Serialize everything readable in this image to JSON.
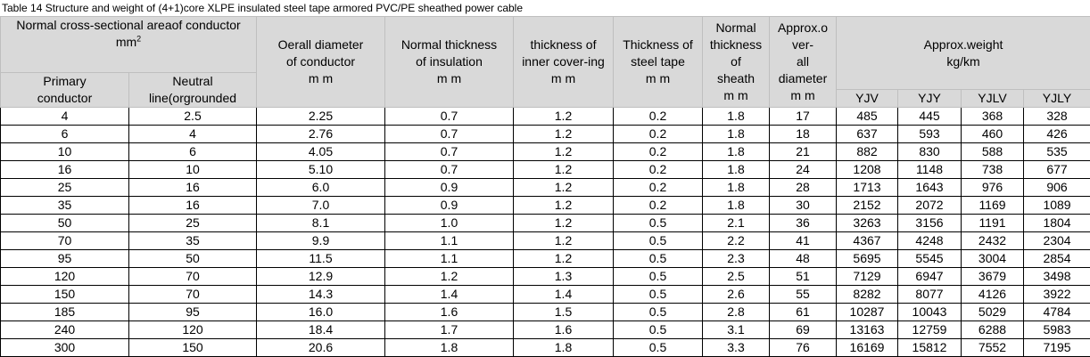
{
  "title": "Table 14 Structure and weight of (4+1)core XLPE insulated steel tape armored PVC/PE sheathed power cable",
  "header": {
    "area": {
      "lines": [
        "Normal cross-sectional areaof conductor"
      ],
      "unit": "mm",
      "unit_sup": "2"
    },
    "primary": [
      "Primary",
      "conductor"
    ],
    "neutral": [
      "Neutral",
      "line(orgrounded"
    ],
    "columns": [
      [
        "Oerall diameter",
        "of conductor",
        "m m"
      ],
      [
        "Normal thickness",
        "of insulation",
        "m m"
      ],
      [
        "thickness of",
        "inner cover-ing",
        "m m"
      ],
      [
        "Thickness of",
        "steel tape",
        "m m"
      ],
      [
        "Normal",
        "thickness",
        "of",
        "sheath",
        "m m"
      ],
      [
        "Approx.o",
        "ver-",
        "all",
        "diameter",
        "m m"
      ]
    ],
    "weight": [
      "Approx.weight",
      "kg/km"
    ],
    "weight_types": [
      "YJV",
      "YJY",
      "YJLV",
      "YJLY"
    ]
  },
  "table": {
    "rows": [
      [
        "4",
        "2.5",
        "2.25",
        "0.7",
        "1.2",
        "0.2",
        "1.8",
        "17",
        "485",
        "445",
        "368",
        "328"
      ],
      [
        "6",
        "4",
        "2.76",
        "0.7",
        "1.2",
        "0.2",
        "1.8",
        "18",
        "637",
        "593",
        "460",
        "426"
      ],
      [
        "10",
        "6",
        "4.05",
        "0.7",
        "1.2",
        "0.2",
        "1.8",
        "21",
        "882",
        "830",
        "588",
        "535"
      ],
      [
        "16",
        "10",
        "5.10",
        "0.7",
        "1.2",
        "0.2",
        "1.8",
        "24",
        "1208",
        "1148",
        "738",
        "677"
      ],
      [
        "25",
        "16",
        "6.0",
        "0.9",
        "1.2",
        "0.2",
        "1.8",
        "28",
        "1713",
        "1643",
        "976",
        "906"
      ],
      [
        "35",
        "16",
        "7.0",
        "0.9",
        "1.2",
        "0.2",
        "1.8",
        "30",
        "2152",
        "2072",
        "1169",
        "1089"
      ],
      [
        "50",
        "25",
        "8.1",
        "1.0",
        "1.2",
        "0.5",
        "2.1",
        "36",
        "3263",
        "3156",
        "1191",
        "1804"
      ],
      [
        "70",
        "35",
        "9.9",
        "1.1",
        "1.2",
        "0.5",
        "2.2",
        "41",
        "4367",
        "4248",
        "2432",
        "2304"
      ],
      [
        "95",
        "50",
        "11.5",
        "1.1",
        "1.2",
        "0.5",
        "2.3",
        "48",
        "5695",
        "5545",
        "3004",
        "2854"
      ],
      [
        "120",
        "70",
        "12.9",
        "1.2",
        "1.3",
        "0.5",
        "2.5",
        "51",
        "7129",
        "6947",
        "3679",
        "3498"
      ],
      [
        "150",
        "70",
        "14.3",
        "1.4",
        "1.4",
        "0.5",
        "2.6",
        "55",
        "8282",
        "8077",
        "4126",
        "3922"
      ],
      [
        "185",
        "95",
        "16.0",
        "1.6",
        "1.5",
        "0.5",
        "2.8",
        "61",
        "10287",
        "10043",
        "5029",
        "4784"
      ],
      [
        "240",
        "120",
        "18.4",
        "1.7",
        "1.6",
        "0.5",
        "3.1",
        "69",
        "13163",
        "12759",
        "6288",
        "5983"
      ],
      [
        "300",
        "150",
        "20.6",
        "1.8",
        "1.8",
        "0.5",
        "3.3",
        "76",
        "16169",
        "15812",
        "7552",
        "7195"
      ]
    ]
  }
}
